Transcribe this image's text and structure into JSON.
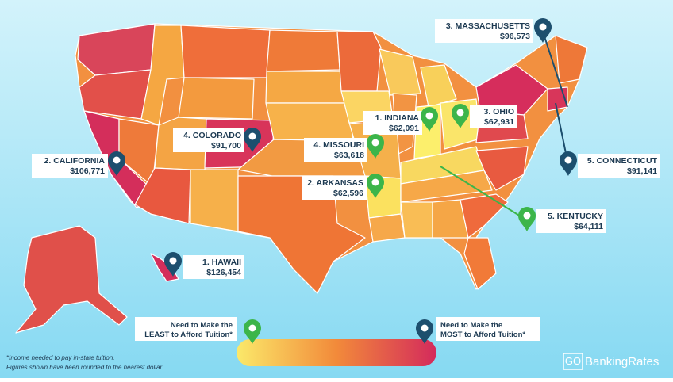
{
  "pins": [
    {
      "label": "3. MASSACHUSETTS",
      "amount": "$96,573",
      "kind": "most"
    },
    {
      "label": "1. INDIANA",
      "amount": "$62,091",
      "kind": "least"
    },
    {
      "label": "3. OHIO",
      "amount": "$62,931",
      "kind": "least"
    },
    {
      "label": "4. COLORADO",
      "amount": "$91,700",
      "kind": "most"
    },
    {
      "label": "4. MISSOURI",
      "amount": "$63,618",
      "kind": "least"
    },
    {
      "label": "2. CALIFORNIA",
      "amount": "$106,771",
      "kind": "most"
    },
    {
      "label": "5. CONNECTICUT",
      "amount": "$91,141",
      "kind": "most"
    },
    {
      "label": "2. ARKANSAS",
      "amount": "$62,596",
      "kind": "least"
    },
    {
      "label": "5. KENTUCKY",
      "amount": "$64,111",
      "kind": "least"
    },
    {
      "label": "1. HAWAII",
      "amount": "$126,454",
      "kind": "most"
    }
  ],
  "legend": {
    "least": [
      "Need to Make the",
      "LEAST to Afford Tuition*"
    ],
    "most": [
      "Need to Make the",
      "MOST to Afford Tuition*"
    ]
  },
  "footnote": [
    "*Income needed to pay in-state tuition.",
    "Figures shown have been rounded to the nearest dollar."
  ],
  "logo": {
    "mark": "GO",
    "text": "BankingRates"
  }
}
